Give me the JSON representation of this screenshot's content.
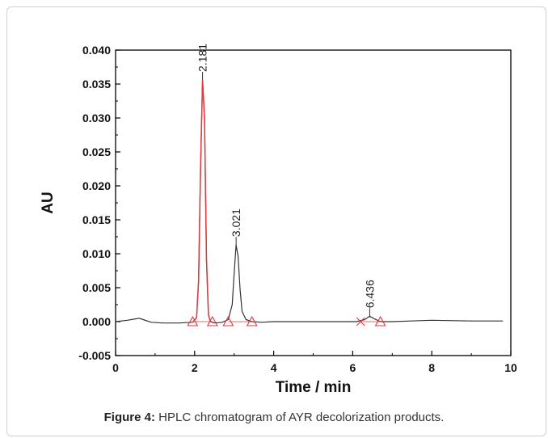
{
  "caption": {
    "label": "Figure 4:",
    "text": " HPLC chromatogram of AYR decolorization products."
  },
  "chart_data": {
    "type": "line",
    "xlabel": "Time / min",
    "ylabel": "AU",
    "xlim": [
      0,
      10
    ],
    "ylim": [
      -0.005,
      0.04
    ],
    "x_ticks": [
      "0",
      "2",
      "4",
      "6",
      "8",
      "10"
    ],
    "y_ticks": [
      "-0.005",
      "0.000",
      "0.005",
      "0.010",
      "0.015",
      "0.020",
      "0.025",
      "0.030",
      "0.035",
      "0.040"
    ],
    "grid": false,
    "colors": {
      "baseline": "#333333",
      "peak_highlight": "#e8343a",
      "frame": "#000000"
    },
    "series": [
      {
        "x": [
          0,
          0.3,
          0.5,
          0.6,
          0.7,
          0.9,
          1.2,
          1.6,
          1.95,
          2.05,
          2.1,
          2.15,
          2.2,
          2.25,
          2.3,
          2.35,
          2.4,
          2.5,
          2.7,
          2.85,
          2.95,
          3.0,
          3.05,
          3.1,
          3.15,
          3.2,
          3.3,
          3.45,
          3.7,
          4.0,
          5.0,
          6.1,
          6.3,
          6.43,
          6.55,
          6.7,
          7.0,
          8.0,
          9.0,
          9.8
        ],
        "y": [
          0.0,
          0.0002,
          0.0004,
          0.0005,
          0.0003,
          -0.0001,
          -0.0002,
          -0.0002,
          -0.0001,
          0.0006,
          0.006,
          0.0226,
          0.0356,
          0.0301,
          0.009,
          0.001,
          0.0,
          -0.0002,
          -0.0001,
          0.0003,
          0.0025,
          0.0071,
          0.0113,
          0.0096,
          0.0048,
          0.0015,
          0.0003,
          0.0,
          -0.0001,
          0.0,
          0.0,
          0.0,
          0.0003,
          0.0008,
          0.0004,
          0.0,
          0.0,
          0.0002,
          0.0001,
          0.0001
        ]
      }
    ],
    "peaks": [
      {
        "label": "2.181",
        "x": 2.2,
        "y": 0.0356,
        "start_x": 1.95,
        "end_x": 2.45,
        "highlighted": true
      },
      {
        "label": "3.021",
        "x": 3.05,
        "y": 0.0113,
        "start_x": 2.85,
        "end_x": 3.45,
        "highlighted": false
      },
      {
        "label": "6.436",
        "x": 6.43,
        "y": 0.0008,
        "start_x": 6.2,
        "end_x": 6.7,
        "highlighted": false
      }
    ]
  }
}
